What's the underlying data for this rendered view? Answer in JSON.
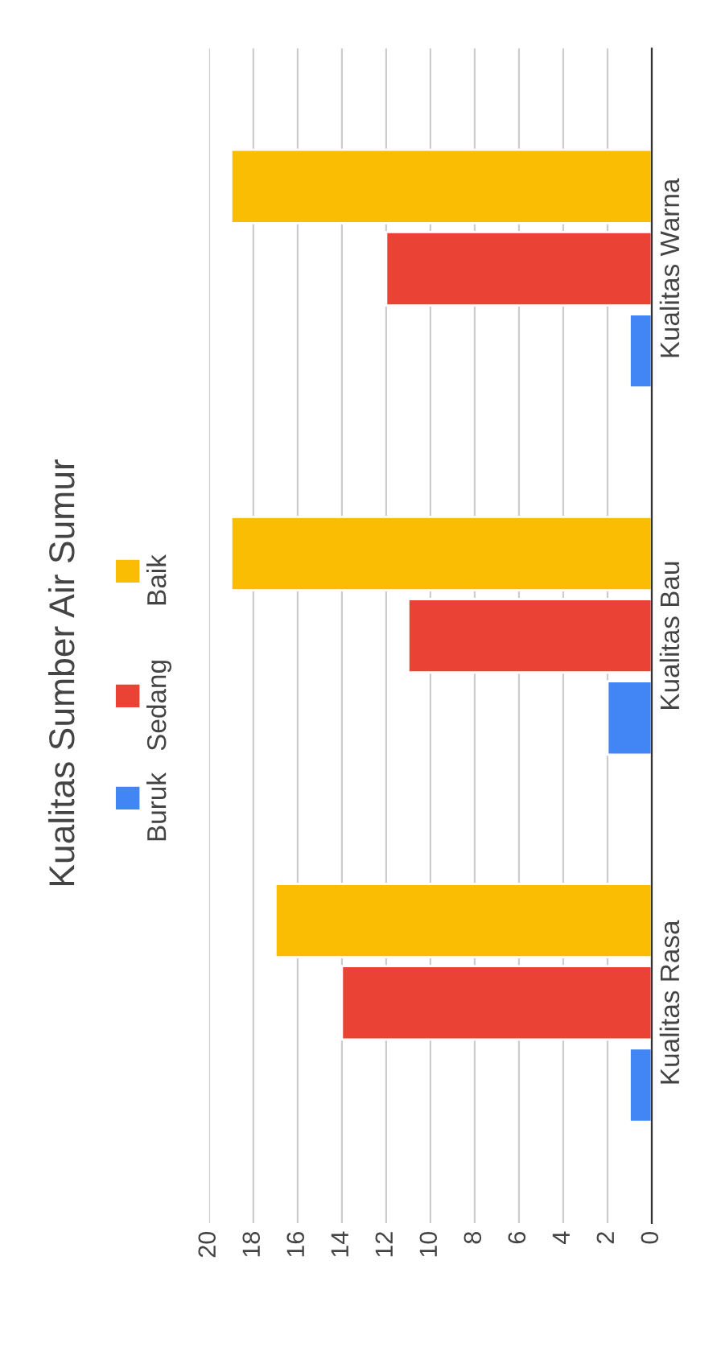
{
  "chart_data": {
    "type": "bar",
    "orientation": "horizontal",
    "title": "Kualitas Sumber Air Sumur",
    "categories": [
      "Kualitas Warna",
      "Kualitas Bau",
      "Kualitas Rasa"
    ],
    "series": [
      {
        "name": "Buruk",
        "color": "#4285f4",
        "values": [
          1,
          2,
          1
        ]
      },
      {
        "name": "Sedang",
        "color": "#ea4335",
        "values": [
          12,
          11,
          14
        ]
      },
      {
        "name": "Baik",
        "color": "#fbbc04",
        "values": [
          19,
          19,
          17
        ]
      }
    ],
    "xlim": [
      20,
      0
    ],
    "xticks": [
      0,
      2,
      4,
      6,
      8,
      10,
      12,
      14,
      16,
      18,
      20
    ],
    "grid": "x",
    "legend": "left"
  }
}
